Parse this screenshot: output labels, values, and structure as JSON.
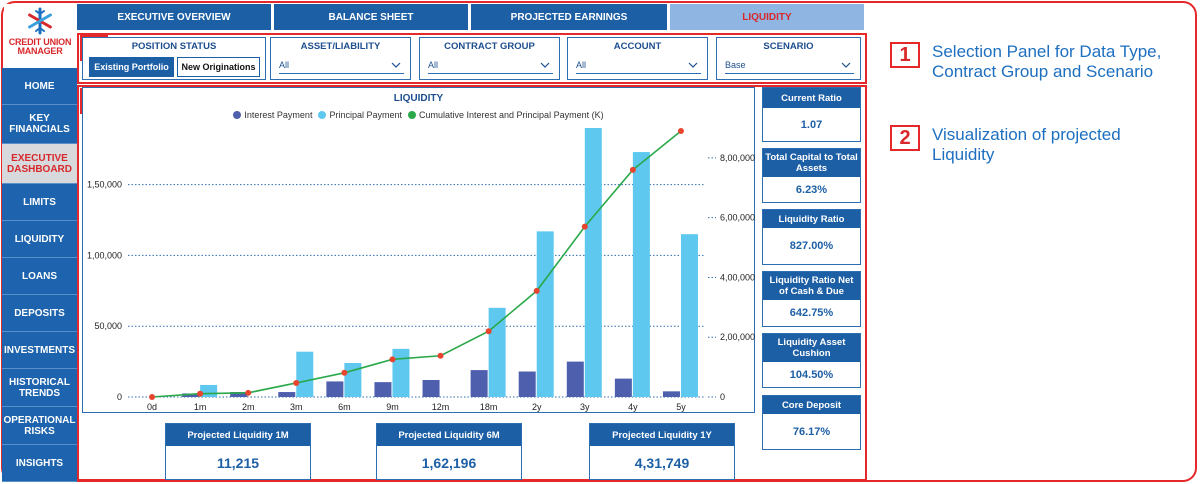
{
  "logo": {
    "brand_line1": "CREDIT UNION",
    "brand_line2": "MANAGER",
    "icon": "snowflake-logo-icon"
  },
  "sidebar": {
    "items": [
      {
        "label": "HOME"
      },
      {
        "label": "KEY FINANCIALS"
      },
      {
        "label": "EXECUTIVE DASHBOARD",
        "active": true
      },
      {
        "label": "LIMITS"
      },
      {
        "label": "LIQUIDITY"
      },
      {
        "label": "LOANS"
      },
      {
        "label": "DEPOSITS"
      },
      {
        "label": "INVESTMENTS"
      },
      {
        "label": "HISTORICAL TRENDS"
      },
      {
        "label": "OPERATIONAL RISKS"
      },
      {
        "label": "INSIGHTS"
      }
    ]
  },
  "tabs": [
    {
      "label": "EXECUTIVE OVERVIEW"
    },
    {
      "label": "BALANCE SHEET"
    },
    {
      "label": "PROJECTED EARNINGS"
    },
    {
      "label": "LIQUIDITY",
      "active": true
    }
  ],
  "badges": {
    "one": "1",
    "two": "2"
  },
  "filters": {
    "position_status": {
      "title": "POSITION STATUS",
      "options": [
        "Existing Portfolio",
        "New Originations"
      ],
      "selected": "Existing Portfolio"
    },
    "asset_liability": {
      "title": "ASSET/LIABILITY",
      "value": "All"
    },
    "contract_group": {
      "title": "CONTRACT GROUP",
      "value": "All"
    },
    "account": {
      "title": "ACCOUNT",
      "value": "All"
    },
    "scenario": {
      "title": "SCENARIO",
      "value": "Base"
    }
  },
  "chart": {
    "title": "LIQUIDITY",
    "legend": [
      "Interest Payment",
      "Principal Payment",
      "Cumulative Interest and Principal Payment (K)"
    ],
    "colors": {
      "interest": "#4e5fae",
      "principal": "#5ec8ef",
      "cumulative": "#2aa84a",
      "marker": "#e8452f",
      "grid": "#2d6db1"
    },
    "left_ticks": [
      "0",
      "50,000",
      "1,00,000",
      "1,50,000"
    ],
    "right_ticks": [
      "0",
      "2,00,000",
      "4,00,000",
      "6,00,000",
      "8,00,000"
    ]
  },
  "chart_data": {
    "type": "bar",
    "categories": [
      "0d",
      "1m",
      "2m",
      "3m",
      "6m",
      "9m",
      "12m",
      "18m",
      "2y",
      "3y",
      "4y",
      "5y"
    ],
    "series": [
      {
        "name": "Interest Payment",
        "axis": "left",
        "values": [
          0,
          2500,
          3500,
          3500,
          11000,
          10500,
          12000,
          19000,
          18000,
          25000,
          13000,
          4000
        ]
      },
      {
        "name": "Principal Payment",
        "axis": "left",
        "values": [
          0,
          8500,
          0,
          32000,
          24000,
          34000,
          0,
          63000,
          117000,
          190000,
          173000,
          115000
        ]
      },
      {
        "name": "Cumulative Interest and Principal Payment (K)",
        "axis": "right",
        "type": "line",
        "values": [
          0,
          11000,
          14000,
          47000,
          81000,
          126000,
          138000,
          220000,
          355000,
          570000,
          760000,
          890000
        ]
      }
    ],
    "ylim_left": [
      0,
      190000
    ],
    "ylim_right": [
      0,
      900000
    ],
    "xlabel": "",
    "ylabel": ""
  },
  "kpis": [
    {
      "label": "Current Ratio",
      "value": "1.07"
    },
    {
      "label": "Total Capital to Total Assets",
      "value": "6.23%"
    },
    {
      "label": "Liquidity Ratio",
      "value": "827.00%"
    },
    {
      "label": "Liquidity Ratio Net of Cash & Due",
      "value": "642.75%"
    },
    {
      "label": "Liquidity Asset Cushion",
      "value": "104.50%"
    },
    {
      "label": "Core Deposit",
      "value": "76.17%"
    }
  ],
  "projected": [
    {
      "label": "Projected Liquidity 1M",
      "value": "11,215"
    },
    {
      "label": "Projected Liquidity 6M",
      "value": "1,62,196"
    },
    {
      "label": "Projected Liquidity 1Y",
      "value": "4,31,749"
    }
  ],
  "annotations": [
    {
      "num": "1",
      "text": "Selection Panel for Data Type, Contract Group and Scenario"
    },
    {
      "num": "2",
      "text": "Visualization of projected Liquidity"
    }
  ]
}
